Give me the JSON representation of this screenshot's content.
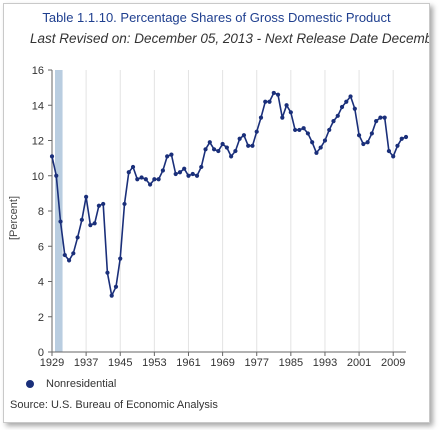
{
  "chart_data": {
    "type": "line",
    "title": "Table 1.1.10. Percentage Shares of Gross Domestic Product",
    "subtitle": "Last Revised on: December 05, 2013 - Next Release Date December",
    "ylabel": "[Percent]",
    "xlabel": "",
    "ylim": [
      0,
      16
    ],
    "yticks": [
      "0",
      "2",
      "4",
      "6",
      "8",
      "10",
      "12",
      "14",
      "16"
    ],
    "xlim": [
      1929,
      2012
    ],
    "xticks": [
      "1929",
      "1937",
      "1945",
      "1953",
      "1961",
      "1969",
      "1977",
      "1985",
      "1993",
      "2001",
      "2009"
    ],
    "grid": "vertical",
    "highlight_band": [
      1929,
      1929.6
    ],
    "series": [
      {
        "name": "Nonresidential",
        "color": "#1a2f7a",
        "x": [
          1929,
          1930,
          1931,
          1932,
          1933,
          1934,
          1935,
          1936,
          1937,
          1938,
          1939,
          1940,
          1941,
          1942,
          1943,
          1944,
          1945,
          1946,
          1947,
          1948,
          1949,
          1950,
          1951,
          1952,
          1953,
          1954,
          1955,
          1956,
          1957,
          1958,
          1959,
          1960,
          1961,
          1962,
          1963,
          1964,
          1965,
          1966,
          1967,
          1968,
          1969,
          1970,
          1971,
          1972,
          1973,
          1974,
          1975,
          1976,
          1977,
          1978,
          1979,
          1980,
          1981,
          1982,
          1983,
          1984,
          1985,
          1986,
          1987,
          1988,
          1989,
          1990,
          1991,
          1992,
          1993,
          1994,
          1995,
          1996,
          1997,
          1998,
          1999,
          2000,
          2001,
          2002,
          2003,
          2004,
          2005,
          2006,
          2007,
          2008,
          2009,
          2010,
          2011,
          2012
        ],
        "values": [
          11.1,
          10.0,
          7.4,
          5.5,
          5.2,
          5.6,
          6.5,
          7.5,
          8.8,
          7.2,
          7.3,
          8.3,
          8.4,
          4.5,
          3.2,
          3.7,
          5.3,
          8.4,
          10.2,
          10.5,
          9.8,
          9.9,
          9.8,
          9.5,
          9.8,
          9.8,
          10.3,
          11.1,
          11.2,
          10.1,
          10.2,
          10.4,
          10.0,
          10.1,
          10.0,
          10.5,
          11.5,
          11.9,
          11.5,
          11.4,
          11.8,
          11.6,
          11.1,
          11.4,
          12.1,
          12.3,
          11.7,
          11.7,
          12.5,
          13.3,
          14.2,
          14.2,
          14.7,
          14.6,
          13.3,
          14.0,
          13.6,
          12.6,
          12.6,
          12.7,
          12.4,
          11.9,
          11.3,
          11.6,
          12.0,
          12.6,
          13.1,
          13.4,
          13.9,
          14.2,
          14.5,
          13.8,
          12.3,
          11.8,
          11.9,
          12.4,
          13.1,
          13.3,
          13.3,
          11.4,
          11.1,
          11.7,
          12.1,
          12.2
        ]
      }
    ]
  },
  "legend": {
    "label": "Nonresidential"
  },
  "source": "Source: U.S. Bureau of Economic Analysis"
}
